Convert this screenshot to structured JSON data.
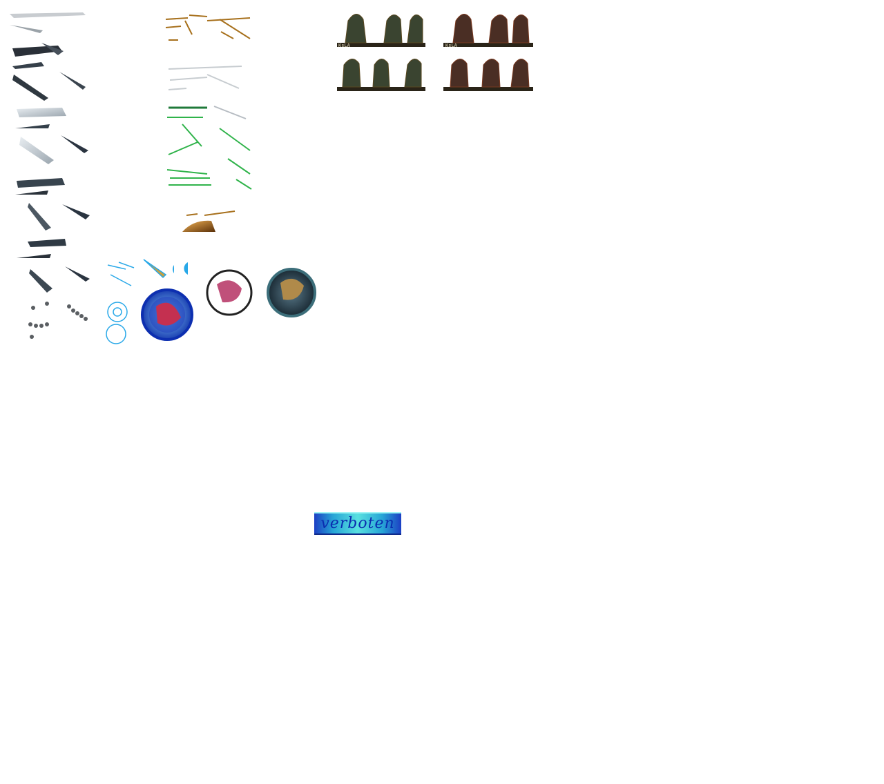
{
  "sheet": {
    "description_free": true,
    "banner_text": "verboten",
    "hud_tags": [
      "KsLA",
      "KsLA"
    ],
    "background": "#ffffff"
  },
  "palettes": {
    "steel": "#2f3a44",
    "silver": "#b9c2cc",
    "bronze": "#a7701c",
    "green": "#2fb34a",
    "orange": "#f07a12",
    "gold": "#e8c640",
    "crimson": "#8c0e1c",
    "magenta": "#c21058",
    "blue": "#1f53c9",
    "purple": "#5b3f86",
    "violet": "#b160d0",
    "teal": "#3a6e78",
    "red": "#e0141e",
    "navy": "#1c2a6a"
  },
  "icons": {
    "emblem": "diamond-emblem-icon",
    "blade": "blade-sprite-icon",
    "character": "character-sprite-icon",
    "orb": "orb-sprite-icon"
  }
}
